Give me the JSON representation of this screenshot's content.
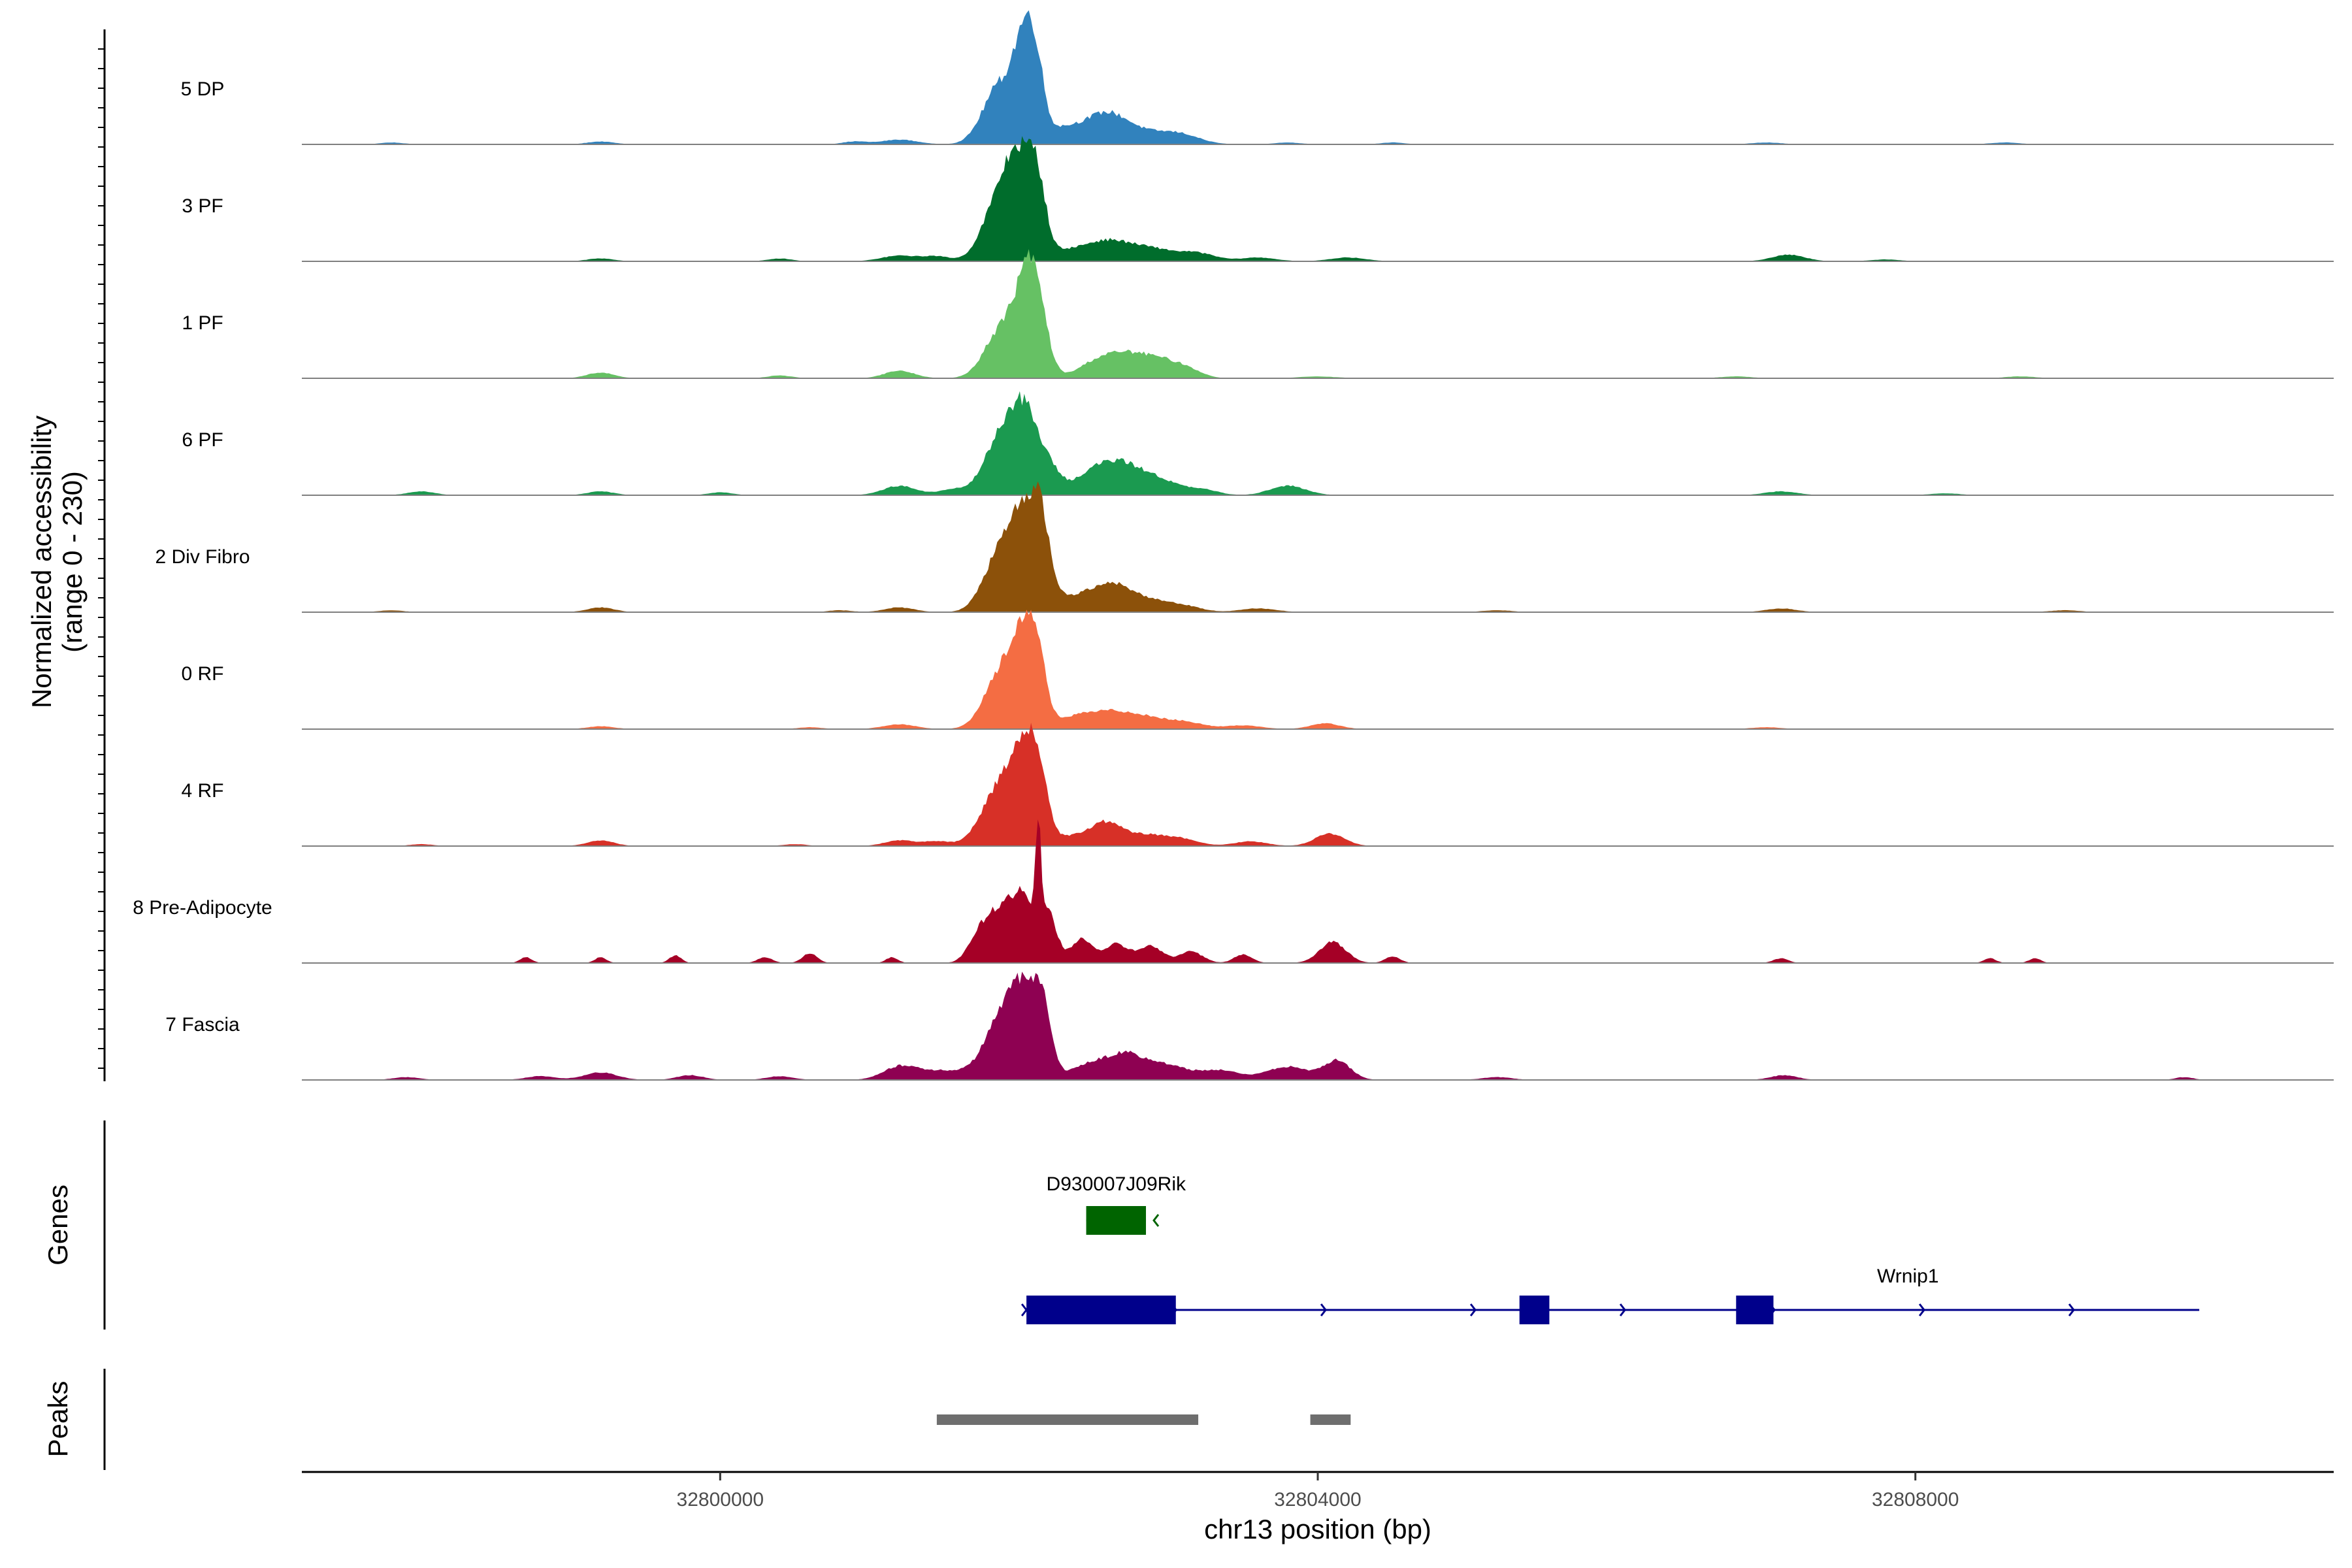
{
  "chart_data": {
    "type": "area",
    "title": "",
    "xlabel": "chr13 position (bp)",
    "ylabel": "Normalized accessibility",
    "ylabel_range": "(range 0 - 230)",
    "xlim": [
      32797200,
      32810800
    ],
    "ylim": [
      0,
      230
    ],
    "x_ticks": [
      32800000,
      32804000,
      32808000
    ],
    "x_tick_labels": [
      "32800000",
      "32804000",
      "32808000"
    ],
    "tracks": [
      {
        "name": "5 DP",
        "color": "#3182bd",
        "peaks": [
          [
            32801200,
            0.05,
            120
          ],
          [
            32801870,
            0.6,
            110
          ],
          [
            32802040,
            0.95,
            70
          ],
          [
            32802120,
            0.45,
            50
          ],
          [
            32802300,
            0.18,
            220
          ],
          [
            32802600,
            0.22,
            130
          ],
          [
            32802860,
            0.12,
            200
          ],
          [
            32803100,
            0.06,
            120
          ],
          [
            32797800,
            0.02,
            80
          ],
          [
            32799200,
            0.03,
            90
          ],
          [
            32800900,
            0.03,
            80
          ],
          [
            32803800,
            0.02,
            90
          ],
          [
            32804500,
            0.02,
            80
          ],
          [
            32807000,
            0.02,
            100
          ],
          [
            32808600,
            0.02,
            100
          ]
        ]
      },
      {
        "name": "3 PF",
        "color": "#006d2c",
        "peaks": [
          [
            32801200,
            0.06,
            120
          ],
          [
            32801450,
            0.05,
            90
          ],
          [
            32801870,
            0.65,
            110
          ],
          [
            32802000,
            0.8,
            80
          ],
          [
            32802120,
            0.75,
            60
          ],
          [
            32802300,
            0.1,
            150
          ],
          [
            32802600,
            0.2,
            150
          ],
          [
            32802900,
            0.12,
            150
          ],
          [
            32803200,
            0.08,
            120
          ],
          [
            32803600,
            0.04,
            120
          ],
          [
            32804200,
            0.04,
            120
          ],
          [
            32807150,
            0.07,
            110
          ],
          [
            32799200,
            0.03,
            90
          ],
          [
            32800400,
            0.03,
            80
          ],
          [
            32807800,
            0.02,
            100
          ]
        ]
      },
      {
        "name": "1 PF",
        "color": "#66c164",
        "peaks": [
          [
            32801200,
            0.08,
            100
          ],
          [
            32801880,
            0.5,
            110
          ],
          [
            32802050,
            0.85,
            80
          ],
          [
            32802130,
            0.5,
            70
          ],
          [
            32802500,
            0.12,
            120
          ],
          [
            32802720,
            0.24,
            150
          ],
          [
            32802980,
            0.15,
            130
          ],
          [
            32803150,
            0.05,
            90
          ],
          [
            32799200,
            0.06,
            90
          ],
          [
            32800400,
            0.03,
            80
          ],
          [
            32804000,
            0.02,
            120
          ],
          [
            32806800,
            0.02,
            100
          ],
          [
            32808700,
            0.02,
            100
          ]
        ]
      },
      {
        "name": "6 PF",
        "color": "#1b9a50",
        "peaks": [
          [
            32801200,
            0.1,
            110
          ],
          [
            32801560,
            0.06,
            100
          ],
          [
            32801880,
            0.6,
            110
          ],
          [
            32802040,
            0.75,
            90
          ],
          [
            32802200,
            0.25,
            80
          ],
          [
            32802450,
            0.12,
            110
          ],
          [
            32802650,
            0.32,
            150
          ],
          [
            32802930,
            0.15,
            150
          ],
          [
            32803240,
            0.05,
            100
          ],
          [
            32803800,
            0.1,
            120
          ],
          [
            32798000,
            0.04,
            90
          ],
          [
            32799200,
            0.04,
            90
          ],
          [
            32800000,
            0.03,
            80
          ],
          [
            32807100,
            0.04,
            110
          ],
          [
            32808200,
            0.02,
            100
          ]
        ]
      },
      {
        "name": "2 Div Fibro",
        "color": "#8c510a",
        "peaks": [
          [
            32801200,
            0.05,
            100
          ],
          [
            32801880,
            0.65,
            110
          ],
          [
            32802040,
            0.85,
            80
          ],
          [
            32802150,
            0.75,
            60
          ],
          [
            32802300,
            0.15,
            140
          ],
          [
            32802600,
            0.28,
            130
          ],
          [
            32802850,
            0.12,
            140
          ],
          [
            32803100,
            0.06,
            120
          ],
          [
            32803600,
            0.04,
            120
          ],
          [
            32799200,
            0.05,
            90
          ],
          [
            32797800,
            0.02,
            80
          ],
          [
            32800800,
            0.02,
            80
          ],
          [
            32807100,
            0.04,
            100
          ],
          [
            32805200,
            0.02,
            100
          ],
          [
            32809000,
            0.02,
            100
          ]
        ]
      },
      {
        "name": "0 RF",
        "color": "#f46d43",
        "peaks": [
          [
            32801200,
            0.05,
            110
          ],
          [
            32801880,
            0.6,
            110
          ],
          [
            32802040,
            0.8,
            80
          ],
          [
            32802120,
            0.55,
            60
          ],
          [
            32802350,
            0.1,
            130
          ],
          [
            32802600,
            0.16,
            150
          ],
          [
            32802880,
            0.11,
            160
          ],
          [
            32803150,
            0.05,
            110
          ],
          [
            32803500,
            0.04,
            120
          ],
          [
            32804050,
            0.06,
            100
          ],
          [
            32799200,
            0.03,
            90
          ],
          [
            32800600,
            0.02,
            80
          ],
          [
            32807000,
            0.02,
            100
          ]
        ]
      },
      {
        "name": "4 RF",
        "color": "#d73027",
        "peaks": [
          [
            32801200,
            0.06,
            100
          ],
          [
            32801450,
            0.05,
            90
          ],
          [
            32801870,
            0.6,
            120
          ],
          [
            32802040,
            0.82,
            90
          ],
          [
            32802130,
            0.5,
            60
          ],
          [
            32802350,
            0.1,
            120
          ],
          [
            32802580,
            0.22,
            100
          ],
          [
            32802840,
            0.12,
            150
          ],
          [
            32803100,
            0.06,
            110
          ],
          [
            32803550,
            0.05,
            110
          ],
          [
            32804080,
            0.13,
            100
          ],
          [
            32799200,
            0.06,
            90
          ],
          [
            32798000,
            0.02,
            80
          ],
          [
            32800500,
            0.02,
            80
          ]
        ]
      },
      {
        "name": "8 Pre-Adipocyte",
        "color": "#a50026",
        "peaks": [
          [
            32801720,
            0.18,
            70
          ],
          [
            32801870,
            0.55,
            100
          ],
          [
            32802030,
            0.6,
            70
          ],
          [
            32802130,
            0.95,
            18
          ],
          [
            32802190,
            0.55,
            60
          ],
          [
            32802420,
            0.25,
            70
          ],
          [
            32802650,
            0.2,
            80
          ],
          [
            32802880,
            0.18,
            80
          ],
          [
            32803150,
            0.12,
            80
          ],
          [
            32803500,
            0.09,
            60
          ],
          [
            32804100,
            0.22,
            90
          ],
          [
            32804500,
            0.07,
            50
          ],
          [
            32798700,
            0.06,
            40
          ],
          [
            32799200,
            0.06,
            40
          ],
          [
            32799700,
            0.08,
            40
          ],
          [
            32800300,
            0.06,
            50
          ],
          [
            32800600,
            0.1,
            50
          ],
          [
            32801150,
            0.06,
            40
          ],
          [
            32807100,
            0.05,
            50
          ],
          [
            32808500,
            0.05,
            40
          ],
          [
            32808800,
            0.05,
            40
          ]
        ]
      },
      {
        "name": "7 Fascia",
        "color": "#8e0152",
        "peaks": [
          [
            32801200,
            0.12,
            110
          ],
          [
            32801500,
            0.1,
            200
          ],
          [
            32801880,
            0.62,
            110
          ],
          [
            32802040,
            0.78,
            90
          ],
          [
            32802160,
            0.6,
            60
          ],
          [
            32802450,
            0.14,
            120
          ],
          [
            32802700,
            0.25,
            130
          ],
          [
            32802980,
            0.15,
            150
          ],
          [
            32803350,
            0.1,
            130
          ],
          [
            32803800,
            0.14,
            140
          ],
          [
            32804130,
            0.2,
            90
          ],
          [
            32797900,
            0.03,
            90
          ],
          [
            32798800,
            0.04,
            100
          ],
          [
            32799200,
            0.08,
            110
          ],
          [
            32799800,
            0.05,
            90
          ],
          [
            32800400,
            0.04,
            90
          ],
          [
            32807120,
            0.05,
            90
          ],
          [
            32809800,
            0.03,
            60
          ],
          [
            32805200,
            0.03,
            100
          ]
        ]
      }
    ],
    "genes": [
      {
        "name": "D930007J09Rik",
        "color": "#006400",
        "strand": "-",
        "start": 32802450,
        "end": 32802850,
        "exons": [
          [
            32802450,
            32802850
          ]
        ]
      },
      {
        "name": "Wrnip1",
        "color": "#00008b",
        "strand": "+",
        "start": 32802050,
        "end": 32809900,
        "exons": [
          [
            32802050,
            32803050
          ],
          [
            32805350,
            32805550
          ],
          [
            32806800,
            32807050
          ]
        ]
      }
    ],
    "peaks_track": [
      [
        32801450,
        32803200
      ],
      [
        32803950,
        32804220
      ]
    ],
    "panel_labels": [
      "Genes",
      "Peaks"
    ]
  }
}
